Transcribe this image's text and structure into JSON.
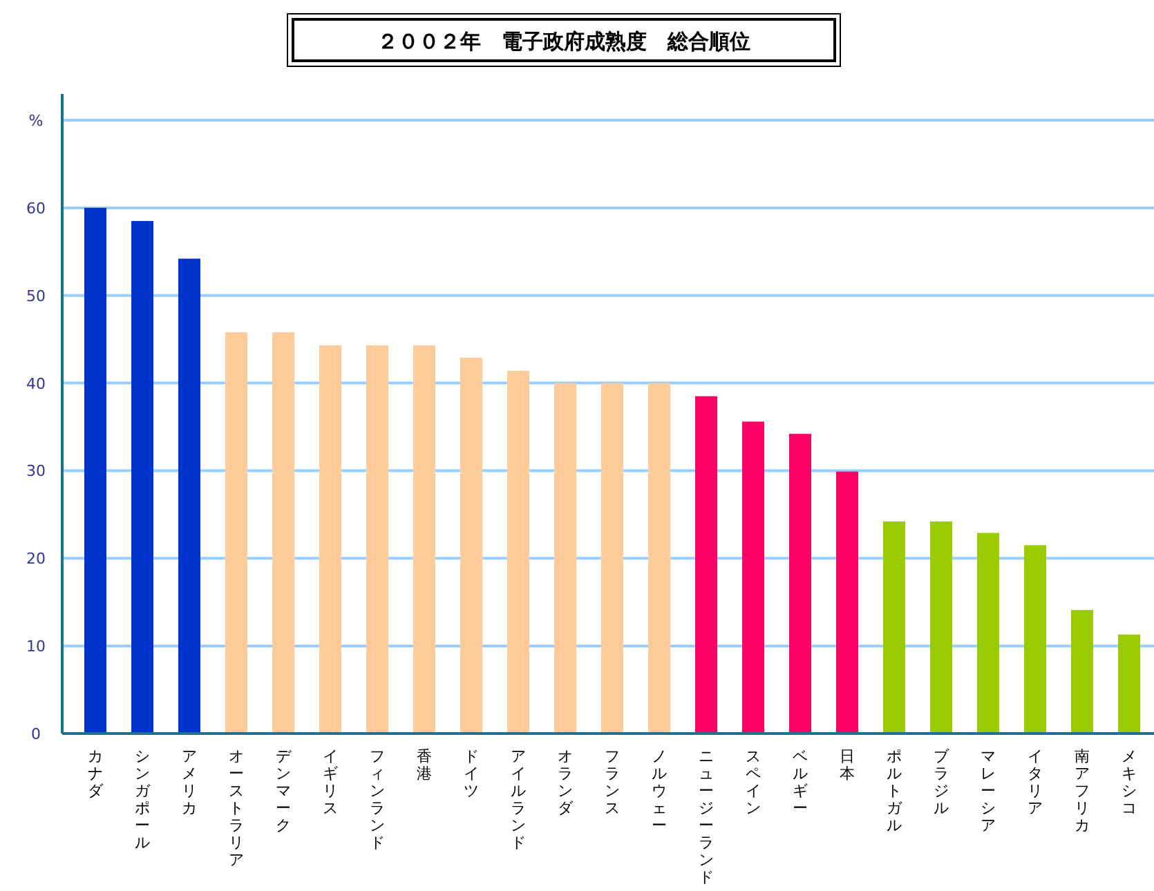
{
  "chart_data": {
    "type": "bar",
    "title": "２００２年　電子政府成熟度　総合順位",
    "categories": [
      "カナダ",
      "シンガポール",
      "アメリカ",
      "オーストラリア",
      "デンマーク",
      "イギリス",
      "フィンランド",
      "香港",
      "ドイツ",
      "アイルランド",
      "オランダ",
      "フランス",
      "ノルウェー",
      "ニュージーランド",
      "スペイン",
      "ベルギー",
      "日本",
      "ポルトガル",
      "ブラジル",
      "マレーシア",
      "イタリア",
      "南アフリカ",
      "メキシコ"
    ],
    "values": [
      60,
      58.5,
      54.2,
      45.8,
      45.8,
      44.3,
      44.3,
      44.3,
      42.9,
      41.4,
      40,
      40,
      40,
      38.5,
      35.6,
      34.2,
      29.9,
      24.2,
      24.2,
      22.9,
      21.5,
      14.1,
      11.3
    ],
    "colors": [
      "#0033cc",
      "#0033cc",
      "#0033cc",
      "#ffcc99",
      "#ffcc99",
      "#ffcc99",
      "#ffcc99",
      "#ffcc99",
      "#ffcc99",
      "#ffcc99",
      "#ffcc99",
      "#ffcc99",
      "#ffcc99",
      "#ff0066",
      "#ff0066",
      "#ff0066",
      "#ff0066",
      "#99cc00",
      "#99cc00",
      "#99cc00",
      "#99cc00",
      "#99cc00",
      "#99cc00"
    ],
    "ylim": [
      0,
      73
    ],
    "yticks": [
      0,
      10,
      20,
      30,
      40,
      50,
      60,
      {
        "value": 70,
        "label": "%"
      }
    ],
    "grid": "y"
  }
}
